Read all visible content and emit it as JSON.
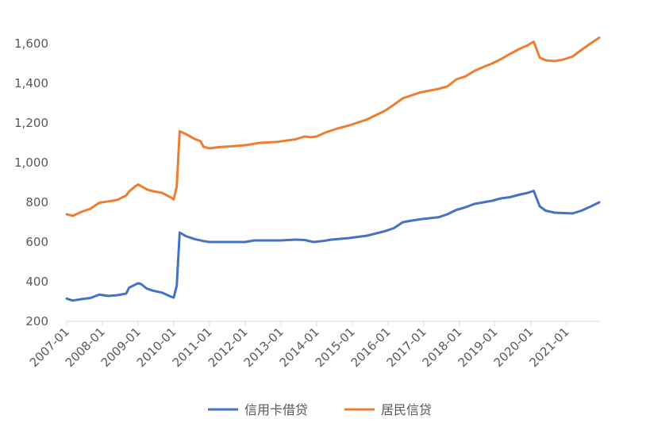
{
  "chart_data": {
    "type": "line",
    "title": "",
    "xlabel": "",
    "ylabel": "",
    "ylim": [
      200,
      1700
    ],
    "yticks": [
      200,
      400,
      600,
      800,
      1000,
      1200,
      1400,
      1600
    ],
    "ytick_labels": [
      "200",
      "400",
      "600",
      "800",
      "1,000",
      "1,200",
      "1,400",
      "1,600"
    ],
    "xticks": [
      "2007-01",
      "2008-01",
      "2009-01",
      "2010-01",
      "2011-01",
      "2012-01",
      "2013-01",
      "2014-01",
      "2015-01",
      "2016-01",
      "2017-01",
      "2018-01",
      "2019-01",
      "2020-01",
      "2021-01"
    ],
    "grid": false,
    "legend_position": "bottom",
    "x_start": "2007-01",
    "x_end": "2021-12",
    "series": [
      {
        "name": "信用卡借贷",
        "color": "#4472C4",
        "points": [
          [
            "2007-01",
            315
          ],
          [
            "2007-03",
            305
          ],
          [
            "2007-06",
            312
          ],
          [
            "2007-09",
            318
          ],
          [
            "2007-12",
            335
          ],
          [
            "2008-03",
            328
          ],
          [
            "2008-06",
            332
          ],
          [
            "2008-09",
            340
          ],
          [
            "2008-10",
            370
          ],
          [
            "2008-12",
            385
          ],
          [
            "2009-01",
            392
          ],
          [
            "2009-02",
            388
          ],
          [
            "2009-04",
            365
          ],
          [
            "2009-06",
            355
          ],
          [
            "2009-09",
            345
          ],
          [
            "2009-12",
            325
          ],
          [
            "2010-01",
            320
          ],
          [
            "2010-02",
            380
          ],
          [
            "2010-03",
            648
          ],
          [
            "2010-05",
            630
          ],
          [
            "2010-08",
            615
          ],
          [
            "2010-11",
            605
          ],
          [
            "2011-01",
            600
          ],
          [
            "2011-04",
            600
          ],
          [
            "2011-08",
            600
          ],
          [
            "2012-01",
            600
          ],
          [
            "2012-04",
            608
          ],
          [
            "2012-09",
            608
          ],
          [
            "2013-01",
            608
          ],
          [
            "2013-06",
            612
          ],
          [
            "2013-09",
            610
          ],
          [
            "2013-12",
            600
          ],
          [
            "2014-03",
            605
          ],
          [
            "2014-06",
            612
          ],
          [
            "2014-12",
            620
          ],
          [
            "2015-06",
            632
          ],
          [
            "2015-12",
            655
          ],
          [
            "2016-03",
            670
          ],
          [
            "2016-06",
            700
          ],
          [
            "2016-09",
            708
          ],
          [
            "2016-12",
            715
          ],
          [
            "2017-06",
            725
          ],
          [
            "2017-09",
            740
          ],
          [
            "2017-12",
            762
          ],
          [
            "2018-03",
            775
          ],
          [
            "2018-06",
            792
          ],
          [
            "2018-09",
            800
          ],
          [
            "2018-12",
            808
          ],
          [
            "2019-03",
            820
          ],
          [
            "2019-06",
            826
          ],
          [
            "2019-09",
            838
          ],
          [
            "2019-12",
            848
          ],
          [
            "2020-02",
            858
          ],
          [
            "2020-04",
            780
          ],
          [
            "2020-06",
            758
          ],
          [
            "2020-09",
            748
          ],
          [
            "2020-12",
            746
          ],
          [
            "2021-03",
            744
          ],
          [
            "2021-06",
            758
          ],
          [
            "2021-09",
            778
          ],
          [
            "2021-12",
            800
          ]
        ]
      },
      {
        "name": "居民信贷",
        "color": "#ED7D31",
        "points": [
          [
            "2007-01",
            740
          ],
          [
            "2007-03",
            732
          ],
          [
            "2007-06",
            752
          ],
          [
            "2007-09",
            768
          ],
          [
            "2007-12",
            798
          ],
          [
            "2008-03",
            805
          ],
          [
            "2008-06",
            812
          ],
          [
            "2008-09",
            835
          ],
          [
            "2008-10",
            855
          ],
          [
            "2008-12",
            880
          ],
          [
            "2009-01",
            890
          ],
          [
            "2009-02",
            882
          ],
          [
            "2009-04",
            865
          ],
          [
            "2009-06",
            856
          ],
          [
            "2009-09",
            848
          ],
          [
            "2009-12",
            825
          ],
          [
            "2010-01",
            815
          ],
          [
            "2010-02",
            880
          ],
          [
            "2010-03",
            1158
          ],
          [
            "2010-05",
            1145
          ],
          [
            "2010-08",
            1120
          ],
          [
            "2010-10",
            1108
          ],
          [
            "2010-11",
            1080
          ],
          [
            "2011-01",
            1072
          ],
          [
            "2011-04",
            1078
          ],
          [
            "2011-08",
            1082
          ],
          [
            "2012-01",
            1088
          ],
          [
            "2012-06",
            1100
          ],
          [
            "2012-12",
            1105
          ],
          [
            "2013-06",
            1118
          ],
          [
            "2013-09",
            1132
          ],
          [
            "2013-11",
            1128
          ],
          [
            "2014-01",
            1132
          ],
          [
            "2014-04",
            1152
          ],
          [
            "2014-08",
            1172
          ],
          [
            "2014-12",
            1188
          ],
          [
            "2015-06",
            1218
          ],
          [
            "2015-12",
            1262
          ],
          [
            "2016-03",
            1292
          ],
          [
            "2016-06",
            1325
          ],
          [
            "2016-12",
            1355
          ],
          [
            "2017-06",
            1372
          ],
          [
            "2017-09",
            1385
          ],
          [
            "2017-12",
            1420
          ],
          [
            "2018-03",
            1435
          ],
          [
            "2018-06",
            1462
          ],
          [
            "2018-09",
            1482
          ],
          [
            "2018-12",
            1500
          ],
          [
            "2019-03",
            1522
          ],
          [
            "2019-06",
            1548
          ],
          [
            "2019-09",
            1572
          ],
          [
            "2019-12",
            1592
          ],
          [
            "2020-02",
            1610
          ],
          [
            "2020-04",
            1530
          ],
          [
            "2020-06",
            1516
          ],
          [
            "2020-09",
            1512
          ],
          [
            "2020-12",
            1520
          ],
          [
            "2021-03",
            1535
          ],
          [
            "2021-06",
            1568
          ],
          [
            "2021-09",
            1600
          ],
          [
            "2021-12",
            1630
          ]
        ]
      }
    ]
  }
}
